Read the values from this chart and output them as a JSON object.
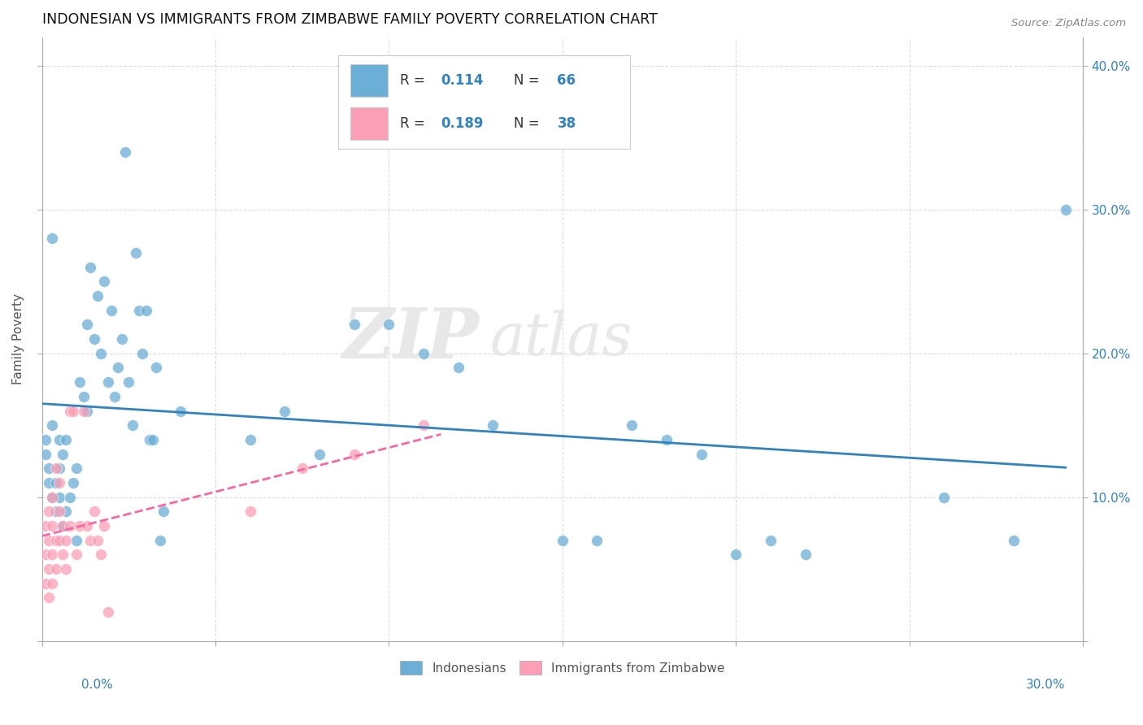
{
  "title": "INDONESIAN VS IMMIGRANTS FROM ZIMBABWE FAMILY POVERTY CORRELATION CHART",
  "source": "Source: ZipAtlas.com",
  "ylabel": "Family Poverty",
  "xlim": [
    0,
    0.3
  ],
  "ylim": [
    0,
    0.42
  ],
  "color_blue": "#6baed6",
  "color_pink": "#fa9fb5",
  "line_blue": "#3182bd",
  "line_pink": "#f768a1",
  "bg_color": "#ffffff",
  "grid_color": "#cccccc",
  "indonesians_x": [
    0.001,
    0.001,
    0.002,
    0.002,
    0.003,
    0.003,
    0.003,
    0.004,
    0.004,
    0.005,
    0.005,
    0.005,
    0.006,
    0.006,
    0.007,
    0.007,
    0.008,
    0.009,
    0.01,
    0.01,
    0.011,
    0.012,
    0.013,
    0.013,
    0.014,
    0.015,
    0.016,
    0.017,
    0.018,
    0.019,
    0.02,
    0.021,
    0.022,
    0.023,
    0.024,
    0.025,
    0.026,
    0.027,
    0.028,
    0.029,
    0.03,
    0.031,
    0.032,
    0.033,
    0.034,
    0.035,
    0.04,
    0.06,
    0.07,
    0.08,
    0.09,
    0.1,
    0.11,
    0.12,
    0.13,
    0.15,
    0.16,
    0.17,
    0.18,
    0.19,
    0.2,
    0.21,
    0.22,
    0.26,
    0.28,
    0.295
  ],
  "indonesians_y": [
    0.14,
    0.13,
    0.12,
    0.11,
    0.1,
    0.15,
    0.28,
    0.09,
    0.11,
    0.14,
    0.12,
    0.1,
    0.13,
    0.08,
    0.14,
    0.09,
    0.1,
    0.11,
    0.07,
    0.12,
    0.18,
    0.17,
    0.22,
    0.16,
    0.26,
    0.21,
    0.24,
    0.2,
    0.25,
    0.18,
    0.23,
    0.17,
    0.19,
    0.21,
    0.34,
    0.18,
    0.15,
    0.27,
    0.23,
    0.2,
    0.23,
    0.14,
    0.14,
    0.19,
    0.07,
    0.09,
    0.16,
    0.14,
    0.16,
    0.13,
    0.22,
    0.22,
    0.2,
    0.19,
    0.15,
    0.07,
    0.07,
    0.15,
    0.14,
    0.13,
    0.06,
    0.07,
    0.06,
    0.1,
    0.07,
    0.3
  ],
  "zimbabwe_x": [
    0.001,
    0.001,
    0.001,
    0.002,
    0.002,
    0.002,
    0.002,
    0.003,
    0.003,
    0.003,
    0.003,
    0.004,
    0.004,
    0.004,
    0.005,
    0.005,
    0.005,
    0.006,
    0.006,
    0.007,
    0.007,
    0.008,
    0.008,
    0.009,
    0.01,
    0.011,
    0.012,
    0.013,
    0.014,
    0.015,
    0.016,
    0.017,
    0.018,
    0.019,
    0.06,
    0.075,
    0.09,
    0.11
  ],
  "zimbabwe_y": [
    0.08,
    0.06,
    0.04,
    0.09,
    0.07,
    0.05,
    0.03,
    0.08,
    0.1,
    0.06,
    0.04,
    0.07,
    0.12,
    0.05,
    0.09,
    0.11,
    0.07,
    0.06,
    0.08,
    0.07,
    0.05,
    0.08,
    0.16,
    0.16,
    0.06,
    0.08,
    0.16,
    0.08,
    0.07,
    0.09,
    0.07,
    0.06,
    0.08,
    0.02,
    0.09,
    0.12,
    0.13,
    0.15
  ],
  "watermark_zip": "ZIP",
  "watermark_atlas": "atlas"
}
